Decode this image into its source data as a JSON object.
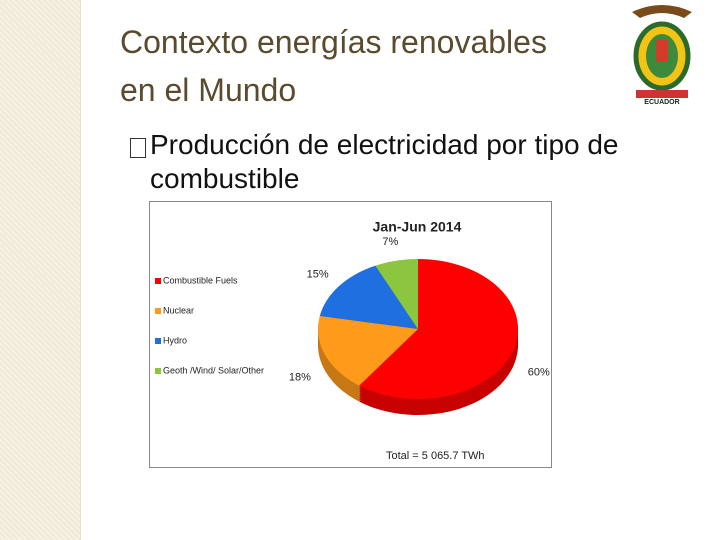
{
  "slide": {
    "title": [
      "Contexto energías renovables",
      "en el Mundo"
    ],
    "bullet": "Producción de electricidad por tipo de combustible",
    "logo_text": "ECUADOR"
  },
  "chart_data": {
    "type": "pie",
    "title": "Jan-Jun 2014",
    "annotation": "Total = 5 065.7 TWh",
    "categories": [
      "Combustible Fuels",
      "Nuclear",
      "Hydro",
      "Geoth /Wind/ Solar/Other"
    ],
    "values": [
      60,
      18,
      15,
      7
    ],
    "value_labels": [
      "60%",
      "18%",
      "15%",
      "7%"
    ],
    "colors": [
      "#ff0000",
      "#ff9a1a",
      "#1f6fe0",
      "#8cc63f"
    ],
    "legend": "left"
  }
}
